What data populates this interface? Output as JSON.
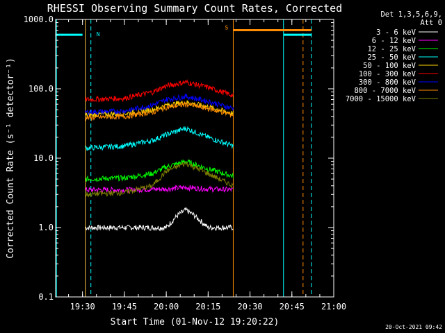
{
  "chart_data": {
    "type": "line",
    "title": "RHESSI Observing Summary Count Rates, Corrected",
    "ylabel": "Corrected Count Rate (s⁻¹ detector⁻¹)",
    "xlabel": "Start Time (01-Nov-12 19:20:22)",
    "y_scale": "log",
    "ylim": [
      0.1,
      1000
    ],
    "y_ticks": [
      {
        "value": 0.1,
        "label": "0.1"
      },
      {
        "value": 1,
        "label": "1.0"
      },
      {
        "value": 10,
        "label": "10.0"
      },
      {
        "value": 100,
        "label": "100.0"
      },
      {
        "value": 1000,
        "label": "1000.0"
      }
    ],
    "x_ticks": [
      "19:30",
      "19:45",
      "20:00",
      "20:15",
      "20:30",
      "20:45",
      "21:00"
    ],
    "xlim": [
      "19:20:22",
      "21:00"
    ],
    "legend_header": [
      "Det 1,3,5,6,9,",
      "Att 0"
    ],
    "legend_position": "right",
    "series": [
      {
        "name": "3 - 6 keV",
        "color": "#ffffff",
        "x": [
          "19:31",
          "20:00",
          "20:04",
          "20:07",
          "20:10",
          "20:15",
          "20:24"
        ],
        "y": [
          1.0,
          1.0,
          1.5,
          1.8,
          1.5,
          1.0,
          1.0
        ]
      },
      {
        "name": "6 - 12 keV",
        "color": "#ff00ff",
        "x": [
          "19:31",
          "19:45",
          "20:00",
          "20:07",
          "20:15",
          "20:24"
        ],
        "y": [
          3.5,
          3.5,
          3.6,
          3.8,
          3.6,
          3.5
        ]
      },
      {
        "name": "12 - 25 keV",
        "color": "#00ff00",
        "x": [
          "19:31",
          "19:45",
          "19:55",
          "20:00",
          "20:07",
          "20:15",
          "20:24"
        ],
        "y": [
          5.0,
          5.2,
          6.0,
          7.5,
          9.0,
          7.0,
          5.5
        ]
      },
      {
        "name": "25 - 50 keV",
        "color": "#00ffff",
        "x": [
          "19:31",
          "19:45",
          "19:55",
          "20:00",
          "20:07",
          "20:15",
          "20:24"
        ],
        "y": [
          14,
          15,
          18,
          22,
          27,
          20,
          15
        ]
      },
      {
        "name": "50 - 100 keV",
        "color": "#ffd700",
        "x": [
          "19:31",
          "19:45",
          "19:55",
          "20:00",
          "20:07",
          "20:15",
          "20:24"
        ],
        "y": [
          42,
          44,
          50,
          58,
          64,
          55,
          44
        ]
      },
      {
        "name": "100 - 300 keV",
        "color": "#ff0000",
        "x": [
          "19:31",
          "19:45",
          "19:55",
          "20:00",
          "20:07",
          "20:15",
          "20:24"
        ],
        "y": [
          70,
          73,
          90,
          110,
          125,
          105,
          80
        ]
      },
      {
        "name": "300 - 800 keV",
        "color": "#0000ff",
        "x": [
          "19:31",
          "19:45",
          "19:55",
          "20:00",
          "20:07",
          "20:15",
          "20:24"
        ],
        "y": [
          46,
          48,
          58,
          70,
          78,
          66,
          52
        ]
      },
      {
        "name": "800 - 7000 keV",
        "color": "#ff8c00",
        "x": [
          "19:31",
          "19:45",
          "19:55",
          "20:00",
          "20:07",
          "20:15",
          "20:24"
        ],
        "y": [
          38,
          40,
          46,
          54,
          60,
          52,
          42
        ]
      },
      {
        "name": "7000 - 15000 keV",
        "color": "#808000",
        "x": [
          "19:31",
          "19:45",
          "19:55",
          "20:00",
          "20:07",
          "20:15",
          "20:24"
        ],
        "y": [
          3.0,
          3.2,
          4.0,
          6.5,
          8.5,
          6.0,
          4.0
        ]
      }
    ],
    "annotations": [
      {
        "label": "N",
        "color": "#00ffff"
      },
      {
        "label": "S",
        "color": "#ff8c00"
      }
    ],
    "vertical_markers": [
      {
        "time": "19:20:40",
        "style": "solid",
        "color": "#00ffff"
      },
      {
        "time": "19:31",
        "style": "solid",
        "color": "#00ffff"
      },
      {
        "time": "19:33",
        "style": "dashed",
        "color": "#00ffff"
      },
      {
        "time": "19:31",
        "style": "solid",
        "color": "#ff8c00"
      },
      {
        "time": "20:24",
        "style": "solid",
        "color": "#ff8c00"
      },
      {
        "time": "20:49",
        "style": "dashed",
        "color": "#ff8c00"
      },
      {
        "time": "20:42",
        "style": "solid",
        "color": "#00ffff"
      },
      {
        "time": "20:52",
        "style": "dashed",
        "color": "#00ffff"
      }
    ],
    "bars": [
      {
        "label": "N",
        "from": "19:20:22",
        "to": "19:30",
        "level": 600,
        "color": "#00ffff"
      },
      {
        "label": "S",
        "from": "20:24",
        "to": "20:52",
        "level": 700,
        "color": "#ff8c00"
      },
      {
        "from": "20:42",
        "to": "20:52",
        "level": 600,
        "color": "#00ffff"
      }
    ],
    "footer_timestamp": "20-Oct-2021 09:42"
  }
}
